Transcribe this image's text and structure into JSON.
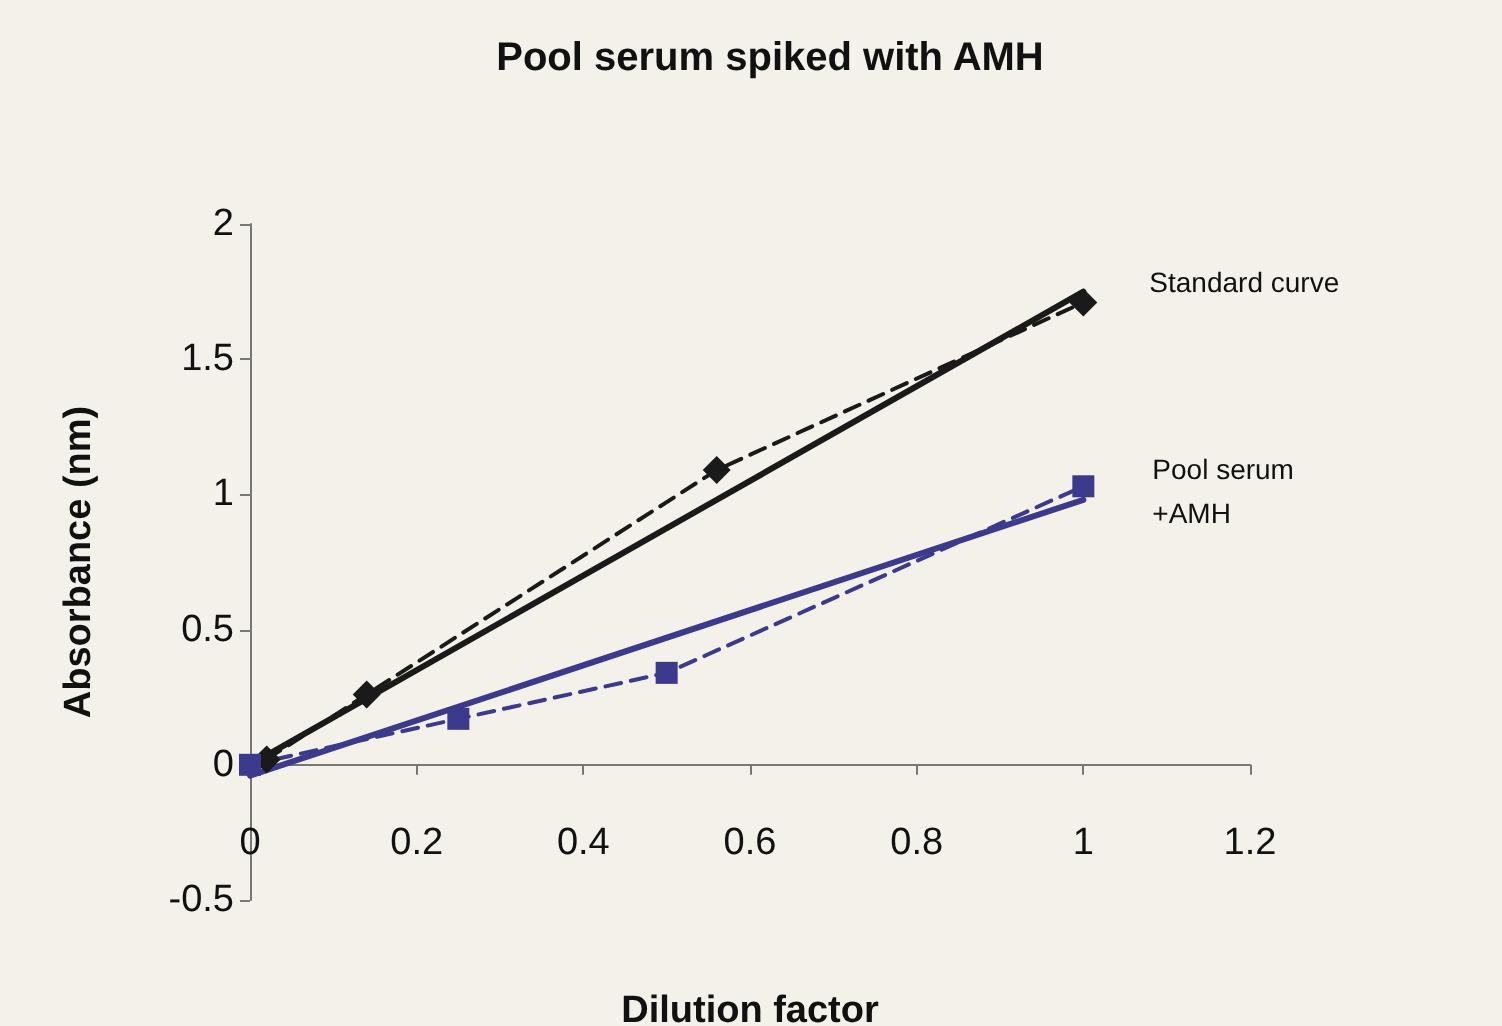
{
  "chart_data": {
    "type": "line",
    "title": "Pool serum spiked with AMH",
    "xlabel": "Dilution factor",
    "ylabel": "Absorbance (nm)",
    "xlim": [
      0,
      1.2
    ],
    "xticks": [
      0,
      0.2,
      0.4,
      0.6,
      0.8,
      1,
      1.2
    ],
    "ylim": [
      -0.5,
      2
    ],
    "yticks": [
      -0.5,
      0,
      0.5,
      1,
      1.5,
      2
    ],
    "legend": false,
    "series": [
      {
        "name": "Standard curve",
        "color": "#1a1a1a",
        "x": [
          0.02,
          0.14,
          0.56,
          1.0
        ],
        "values": [
          0.02,
          0.26,
          1.09,
          1.71
        ],
        "marker": "diamond",
        "line_style": "dashed"
      },
      {
        "color": "#1a1a1a",
        "x": [
          0,
          1.0
        ],
        "values": [
          0.0,
          1.75
        ],
        "marker": "none",
        "line_style": "solid"
      },
      {
        "name": "Pool serum\n+AMH",
        "color": "#3b3a8c",
        "x": [
          0,
          0.25,
          0.5,
          1.0
        ],
        "values": [
          0.0,
          0.17,
          0.34,
          1.03
        ],
        "marker": "square",
        "line_style": "dashed"
      },
      {
        "color": "#3b3a8c",
        "x": [
          0,
          1.0
        ],
        "values": [
          -0.04,
          0.98
        ],
        "marker": "none",
        "line_style": "solid"
      }
    ]
  }
}
